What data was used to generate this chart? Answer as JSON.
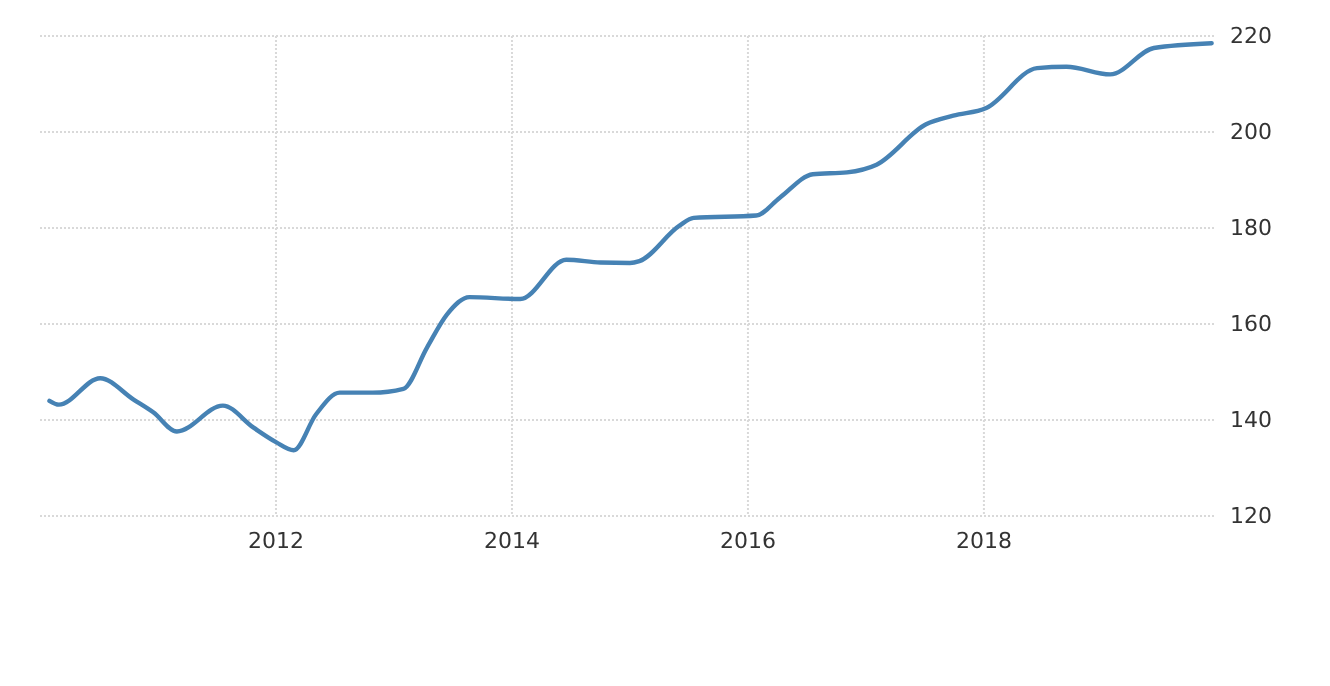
{
  "chart_data": {
    "type": "line",
    "x": [
      2010.08,
      2010.16,
      2010.51,
      2010.79,
      2010.96,
      2011.16,
      2011.55,
      2011.81,
      2012.0,
      2012.15,
      2012.34,
      2012.54,
      2012.82,
      2013.08,
      2013.28,
      2013.45,
      2013.64,
      2014.07,
      2014.46,
      2014.75,
      2015.0,
      2015.08,
      2015.42,
      2015.54,
      2016.07,
      2016.27,
      2016.55,
      2016.84,
      2017.09,
      2017.51,
      2017.74,
      2018.02,
      2018.45,
      2018.7,
      2019.07,
      2019.44,
      2019.93
    ],
    "series": [
      {
        "color": "#4682b4",
        "values": [
          144.0,
          143.2,
          148.7,
          144.3,
          141.6,
          137.6,
          143.0,
          138.4,
          135.4,
          133.7,
          141.2,
          145.7,
          145.7,
          146.5,
          155.1,
          162.0,
          165.6,
          165.2,
          173.4,
          172.8,
          172.7,
          173.1,
          180.5,
          182.1,
          182.6,
          186.3,
          191.2,
          191.6,
          193.2,
          201.6,
          203.4,
          205.0,
          213.3,
          213.6,
          212.0,
          217.5,
          218.5
        ]
      }
    ],
    "xlim": [
      2010,
      2019.95
    ],
    "xticks": [
      2012,
      2014,
      2016,
      2018
    ],
    "ylim": [
      120,
      220
    ],
    "yticks": [
      120,
      140,
      160,
      180,
      200,
      220
    ],
    "grid": true,
    "marker": "none",
    "line_style": "solid"
  }
}
